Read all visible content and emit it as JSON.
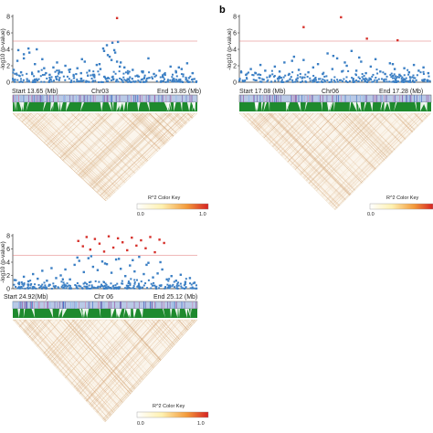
{
  "figure": {
    "panels": [
      {
        "letter": "",
        "chromosome": "Chr03",
        "start_label": "Start 13.65 (Mb)",
        "end_label": "End 13.85 (Mb)",
        "ylabel": "-log10 (p-value)",
        "yticks": [
          "0",
          "2",
          "4",
          "6",
          "8"
        ],
        "color_key_title": "R^2 Color Key",
        "color_key_min": "0.0",
        "color_key_max": "1.0"
      },
      {
        "letter": "b",
        "chromosome": "Chr06",
        "start_label": "Start 17.08 (Mb)",
        "end_label": "End 17.28 (Mb)",
        "ylabel": "-log10 (p-value)",
        "yticks": [
          "0",
          "2",
          "4",
          "6",
          "8"
        ],
        "color_key_title": "R^2 Color Key",
        "color_key_min": "0.0",
        "color_key_max": "1.0"
      },
      {
        "letter": "",
        "chromosome": "Chr 06",
        "start_label": "Start 24.92(Mb)",
        "end_label": "End 25.12 (Mb)",
        "ylabel": "-log10 (p-value)",
        "yticks": [
          "0",
          "2",
          "4",
          "6",
          "8"
        ],
        "color_key_title": "R^2 Color Key",
        "color_key_min": "0.0",
        "color_key_max": "1.0"
      }
    ]
  },
  "chart_data": [
    {
      "type": "scatter",
      "title": "",
      "xlabel": "Chr03",
      "ylabel": "-log10 (p-value)",
      "xlim": [
        13.65,
        13.85
      ],
      "ylim": [
        0,
        8
      ],
      "threshold": 5,
      "series": [
        {
          "color": "#3b7fc4",
          "x": [
            13.651,
            13.655,
            13.659,
            13.662,
            13.667,
            13.671,
            13.674,
            13.678,
            13.682,
            13.686,
            13.69,
            13.694,
            13.698,
            13.703,
            13.707,
            13.711,
            13.716,
            13.72,
            13.724,
            13.728,
            13.733,
            13.737,
            13.741,
            13.745,
            13.749,
            13.752,
            13.755,
            13.758,
            13.761,
            13.764,
            13.767,
            13.771,
            13.775,
            13.78,
            13.785,
            13.791,
            13.797,
            13.803,
            13.809,
            13.815,
            13.821,
            13.827,
            13.833,
            13.839,
            13.845,
            13.662,
            13.668,
            13.676,
            13.684,
            13.744,
            13.748,
            13.753,
            13.757,
            13.76,
            13.763,
            13.766,
            13.656,
            13.7,
            13.725,
            13.79,
            13.83
          ],
          "y": [
            1.5,
            2.6,
            1.2,
            3.4,
            4.1,
            1.0,
            2.2,
            1.3,
            2.8,
            1.1,
            0.9,
            1.8,
            2.4,
            1.2,
            2.0,
            1.5,
            0.8,
            1.7,
            1.1,
            2.5,
            1.4,
            0.9,
            2.1,
            1.6,
            3.8,
            4.5,
            3.1,
            4.8,
            3.6,
            4.9,
            2.4,
            1.8,
            1.1,
            1.5,
            0.8,
            1.2,
            2.9,
            1.0,
            1.4,
            0.9,
            1.9,
            1.2,
            1.6,
            2.3,
            1.1,
            2.9,
            3.6,
            4.0,
            1.7,
            2.2,
            4.1,
            3.3,
            2.7,
            3.9,
            2.5,
            1.9,
            3.9,
            1.4,
            2.8,
            1.3,
            1.8
          ]
        },
        {
          "color": "#d6312b",
          "x": [
            13.763
          ],
          "y": [
            7.8
          ]
        }
      ]
    },
    {
      "type": "scatter",
      "title": "",
      "xlabel": "Chr06",
      "ylabel": "-log10 (p-value)",
      "xlim": [
        17.08,
        17.28
      ],
      "ylim": [
        0,
        8
      ],
      "threshold": 5,
      "series": [
        {
          "color": "#3b7fc4",
          "x": [
            17.082,
            17.087,
            17.092,
            17.097,
            17.102,
            17.107,
            17.112,
            17.117,
            17.122,
            17.127,
            17.132,
            17.137,
            17.142,
            17.147,
            17.152,
            17.157,
            17.162,
            17.167,
            17.172,
            17.177,
            17.182,
            17.187,
            17.192,
            17.197,
            17.202,
            17.207,
            17.212,
            17.217,
            17.222,
            17.227,
            17.232,
            17.237,
            17.242,
            17.247,
            17.252,
            17.257,
            17.262,
            17.267,
            17.272,
            17.277,
            17.135,
            17.178,
            17.19,
            17.205,
            17.24
          ],
          "y": [
            1.2,
            0.9,
            1.6,
            1.1,
            2.1,
            1.4,
            0.8,
            1.9,
            1.3,
            2.4,
            1.0,
            3.1,
            1.5,
            2.7,
            1.2,
            1.8,
            2.2,
            1.0,
            3.5,
            1.6,
            2.9,
            1.3,
            2.0,
            3.8,
            1.4,
            2.5,
            1.1,
            1.9,
            2.8,
            1.3,
            1.0,
            2.3,
            1.6,
            0.9,
            1.7,
            1.2,
            2.1,
            1.4,
            1.8,
            1.1,
            2.6,
            3.2,
            2.4,
            3.0,
            2.2
          ]
        },
        {
          "color": "#d6312b",
          "x": [
            17.147,
            17.186,
            17.213,
            17.245
          ],
          "y": [
            6.7,
            7.9,
            5.3,
            5.1
          ]
        }
      ]
    },
    {
      "type": "scatter",
      "title": "",
      "xlabel": "Chr 06",
      "ylabel": "-log10 (p-value)",
      "xlim": [
        24.92,
        25.12
      ],
      "ylim": [
        0,
        8
      ],
      "threshold": 5,
      "series": [
        {
          "color": "#3b7fc4",
          "x": [
            24.922,
            24.927,
            24.932,
            24.937,
            24.942,
            24.947,
            24.952,
            24.957,
            24.962,
            24.967,
            24.972,
            24.977,
            24.982,
            24.987,
            24.992,
            24.997,
            25.002,
            25.007,
            25.012,
            25.017,
            25.022,
            25.027,
            25.032,
            25.037,
            25.042,
            25.047,
            25.052,
            25.057,
            25.062,
            25.067,
            25.072,
            25.077,
            25.082,
            25.087,
            25.092,
            25.097,
            25.102,
            25.107,
            25.112,
            25.117,
            24.99,
            25.005,
            25.02,
            25.035,
            25.05,
            25.065,
            25.08
          ],
          "y": [
            1.3,
            0.9,
            1.8,
            1.1,
            2.2,
            1.5,
            2.7,
            1.2,
            3.1,
            1.6,
            2.0,
            2.9,
            1.4,
            3.6,
            4.2,
            2.5,
            4.6,
            3.3,
            2.8,
            4.1,
            3.7,
            2.4,
            4.4,
            3.0,
            1.9,
            3.5,
            2.6,
            4.8,
            2.2,
            3.9,
            1.7,
            2.3,
            2.9,
            1.4,
            1.9,
            1.2,
            2.1,
            1.0,
            1.6,
            0.9,
            4.7,
            4.9,
            3.8,
            4.5,
            4.3,
            3.6,
            4.0
          ]
        },
        {
          "color": "#d6312b",
          "x": [
            24.991,
            24.996,
            25.0,
            25.004,
            25.009,
            25.014,
            25.019,
            25.024,
            25.029,
            25.034,
            25.039,
            25.044,
            25.049,
            25.054,
            25.059,
            25.064,
            25.069,
            25.074,
            25.079,
            25.084
          ],
          "y": [
            7.2,
            6.4,
            7.8,
            5.9,
            7.5,
            6.8,
            5.6,
            7.9,
            6.2,
            7.6,
            7.0,
            5.8,
            7.7,
            6.5,
            7.3,
            6.1,
            7.8,
            5.5,
            7.4,
            6.9
          ]
        }
      ]
    }
  ]
}
